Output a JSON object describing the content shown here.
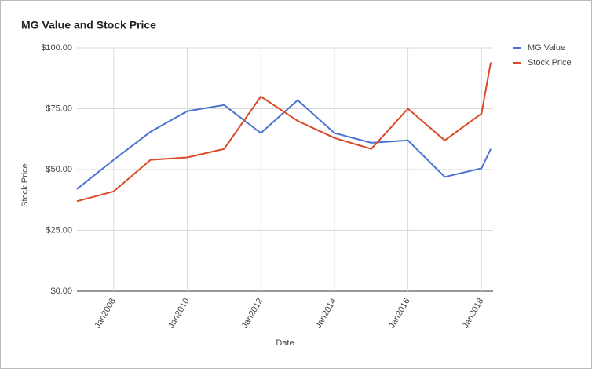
{
  "chart_data": {
    "type": "line",
    "title": "MG Value and Stock Price",
    "x_label": "Date",
    "y_label": "Stock Price",
    "x": [
      "2007-01",
      "2008-01",
      "2009-01",
      "2010-01",
      "2011-01",
      "2012-01",
      "2013-01",
      "2014-01",
      "2015-01",
      "2016-01",
      "2017-01",
      "2018-01",
      "2018-04"
    ],
    "series": [
      {
        "name": "MG Value",
        "color": "#4a72d0",
        "values": [
          42,
          54,
          65.5,
          74,
          76.5,
          65,
          78.5,
          65,
          61,
          62,
          47,
          50.5,
          58.5
        ]
      },
      {
        "name": "Stock Price",
        "color": "#db4a27",
        "values": [
          37,
          41,
          54,
          55,
          58.5,
          80,
          70,
          63,
          58.5,
          75,
          62,
          73,
          94
        ]
      }
    ],
    "xlim": [
      "2007-01",
      "2018-04"
    ],
    "xticks": [
      {
        "value": "2008-01",
        "label": "Jan2008"
      },
      {
        "value": "2010-01",
        "label": "Jan2010"
      },
      {
        "value": "2012-01",
        "label": "Jan2012"
      },
      {
        "value": "2014-01",
        "label": "Jan2014"
      },
      {
        "value": "2016-01",
        "label": "Jan2016"
      },
      {
        "value": "2018-01",
        "label": "Jan2018"
      }
    ],
    "ylim": [
      0,
      100
    ],
    "yticks": [
      {
        "value": 0,
        "label": "$0.00"
      },
      {
        "value": 25,
        "label": "$25.00"
      },
      {
        "value": 50,
        "label": "$50.00"
      },
      {
        "value": 75,
        "label": "$75.00"
      },
      {
        "value": 100,
        "label": "$100.00"
      }
    ],
    "grid": true,
    "legend": "right"
  }
}
